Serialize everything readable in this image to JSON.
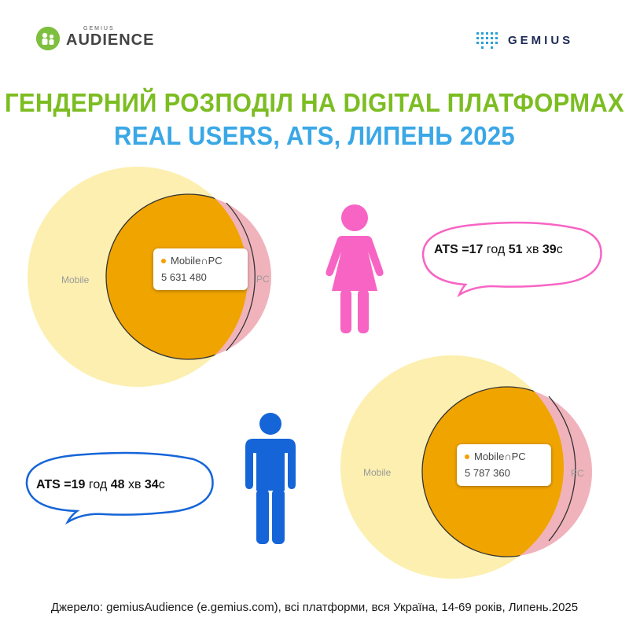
{
  "header": {
    "brand_small": "GEMIUS",
    "brand_big": "AUDIENCE",
    "gemius_logo": "GEMIUS"
  },
  "title": {
    "line1": "ГЕНДЕРНИЙ РОЗПОДІЛ НА DIGITAL ПЛАТФОРМАХ",
    "line2": "REAL USERS, ATS, ЛИПЕНЬ 2025"
  },
  "colors": {
    "title_green": "#7cbd22",
    "title_blue": "#3aa7e6",
    "mobile_fill": "#fcefb0",
    "pc_fill": "#f0b3bb",
    "overlap_fill": "#f0a400",
    "female": "#f764c4",
    "male": "#1565d8"
  },
  "female": {
    "icon": "female-figure-icon",
    "venn": {
      "label_mobile": "Mobile",
      "label_pc": "PC",
      "tooltip_label": "Mobile∩PC",
      "tooltip_value": "5 631 480"
    },
    "ats": {
      "prefix": "ATS =",
      "hours": "17",
      "hours_unit": "год",
      "minutes": "51",
      "minutes_unit": "хв",
      "seconds": "39",
      "seconds_unit": "с"
    }
  },
  "male": {
    "icon": "male-figure-icon",
    "venn": {
      "label_mobile": "Mobile",
      "label_pc": "PC",
      "tooltip_label": "Mobile∩PC",
      "tooltip_value": "5 787 360"
    },
    "ats": {
      "prefix": "ATS =",
      "hours": "19",
      "hours_unit": "год",
      "minutes": "48",
      "minutes_unit": "хв",
      "seconds": "34",
      "seconds_unit": "с"
    }
  },
  "footer": {
    "source": "Джерело: gemiusAudience (e.gemius.com), всі платформи, вся Україна, 14-69 років, Липень.2025"
  }
}
